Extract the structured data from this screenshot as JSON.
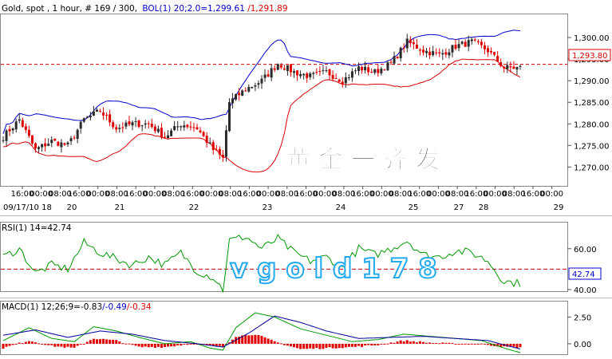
{
  "header": {
    "symbol_text": "Gold, spot , 1 hour, # 169 / 300,",
    "bol_text": "BOL(1) 20;2.0=1,299.61",
    "bol_text2": "/1,291.89"
  },
  "colors": {
    "up_candle": "#2a2a2a",
    "down_candle": "#e00000",
    "upper_band": "#0000cc",
    "lower_band": "#dd0000",
    "rsi_line": "#009900",
    "macd_line": "#009900",
    "signal_line": "#000099",
    "histogram": "#e00000",
    "dashed_line": "#cc0000",
    "watermark_cn": "#111111",
    "watermark_en": "#22aaee"
  },
  "watermarks": {
    "cn": "黄 金 一 齐 发",
    "en": "v g o l d 1 7 8"
  },
  "chart_data": [
    {
      "type": "candlestick",
      "title": "Gold, spot , 1 hour, # 169 / 300,",
      "bands": "BOL(1) 20;2.0=1,299.61/1,291.89",
      "ylim": [
        1266,
        1305
      ],
      "y_ticks": [
        "1,270.00",
        "1,275.00",
        "1,280.00",
        "1,285.00",
        "1,290.00",
        "1,295.00",
        "1,300.00"
      ],
      "y_tick_values": [
        1270,
        1275,
        1280,
        1285,
        1290,
        1295,
        1300
      ],
      "last_price": "1,293.80",
      "last_price_value": 1293.8,
      "x_time_labels": [
        "16:00",
        "00:00",
        "08:00",
        "16:00",
        "00:00",
        "08:00",
        "16:00",
        "00:00",
        "08:00",
        "16:00",
        "00:00",
        "08:00",
        "16:00",
        "00:00",
        "08:00",
        "16:00",
        "00:00",
        "08:00",
        "16:00",
        "00:00",
        "08:00",
        "16:00",
        "00:00",
        "08:00",
        "16:00",
        "00:00",
        "08:00",
        "16:00",
        "00:00",
        "08:00",
        "16:00",
        "00:00"
      ],
      "x_date_labels": [
        "09/17/10 18",
        "20",
        "21",
        "22",
        "23",
        "24",
        "25",
        "27",
        "28",
        "29"
      ],
      "series_keypoints": [
        [
          0,
          1277
        ],
        [
          5,
          1281
        ],
        [
          10,
          1274
        ],
        [
          15,
          1276
        ],
        [
          20,
          1275
        ],
        [
          25,
          1281
        ],
        [
          30,
          1283
        ],
        [
          35,
          1279
        ],
        [
          40,
          1280
        ],
        [
          45,
          1280
        ],
        [
          50,
          1277
        ],
        [
          55,
          1280
        ],
        [
          60,
          1279
        ],
        [
          65,
          1274
        ],
        [
          68,
          1272
        ],
        [
          70,
          1285
        ],
        [
          75,
          1288
        ],
        [
          80,
          1290
        ],
        [
          85,
          1294
        ],
        [
          90,
          1292
        ],
        [
          95,
          1291
        ],
        [
          100,
          1292
        ],
        [
          105,
          1290
        ],
        [
          110,
          1293
        ],
        [
          115,
          1292
        ],
        [
          120,
          1294
        ],
        [
          125,
          1299
        ],
        [
          130,
          1297
        ],
        [
          135,
          1296
        ],
        [
          140,
          1298
        ],
        [
          145,
          1299
        ],
        [
          150,
          1297
        ],
        [
          155,
          1293
        ],
        [
          160,
          1293
        ]
      ]
    },
    {
      "type": "line",
      "title": "RSI(1) 14=42.74",
      "ylim": [
        40,
        72
      ],
      "y_ticks": [
        "60.00",
        "40.00"
      ],
      "y_tick_values": [
        60,
        40
      ],
      "reference_level": 50,
      "last_value": "42.74",
      "last_value_num": 42.74,
      "series_keypoints": [
        [
          0,
          56
        ],
        [
          5,
          60
        ],
        [
          10,
          48
        ],
        [
          15,
          52
        ],
        [
          20,
          50
        ],
        [
          25,
          63
        ],
        [
          30,
          58
        ],
        [
          35,
          55
        ],
        [
          40,
          52
        ],
        [
          45,
          56
        ],
        [
          50,
          52
        ],
        [
          55,
          58
        ],
        [
          60,
          49
        ],
        [
          65,
          46
        ],
        [
          68,
          40
        ],
        [
          70,
          64
        ],
        [
          75,
          66
        ],
        [
          80,
          60
        ],
        [
          85,
          65
        ],
        [
          90,
          58
        ],
        [
          95,
          54
        ],
        [
          100,
          56
        ],
        [
          105,
          51
        ],
        [
          110,
          60
        ],
        [
          115,
          57
        ],
        [
          120,
          60
        ],
        [
          125,
          64
        ],
        [
          130,
          57
        ],
        [
          135,
          56
        ],
        [
          140,
          59
        ],
        [
          145,
          58
        ],
        [
          150,
          54
        ],
        [
          155,
          44
        ],
        [
          160,
          43
        ]
      ]
    },
    {
      "type": "line",
      "title": "MACD(1) 12;26;9=-0.83/-0.49/-0.34",
      "ylim": [
        -0.9,
        3.8
      ],
      "y_ticks": [
        "2.50",
        "0.00"
      ],
      "y_tick_values": [
        2.5,
        0
      ],
      "macd_keypoints": [
        [
          0,
          0.3
        ],
        [
          8,
          1.5
        ],
        [
          15,
          0.5
        ],
        [
          22,
          0.2
        ],
        [
          28,
          1.6
        ],
        [
          35,
          1.2
        ],
        [
          42,
          0.6
        ],
        [
          50,
          0.0
        ],
        [
          58,
          0.2
        ],
        [
          64,
          -0.4
        ],
        [
          68,
          -0.6
        ],
        [
          72,
          1.5
        ],
        [
          78,
          2.9
        ],
        [
          84,
          2.5
        ],
        [
          92,
          1.4
        ],
        [
          100,
          0.8
        ],
        [
          108,
          0.2
        ],
        [
          116,
          0.4
        ],
        [
          124,
          0.9
        ],
        [
          132,
          0.7
        ],
        [
          140,
          0.5
        ],
        [
          148,
          0.3
        ],
        [
          155,
          -0.4
        ],
        [
          160,
          -0.83
        ]
      ],
      "signal_keypoints": [
        [
          0,
          0.8
        ],
        [
          10,
          1.3
        ],
        [
          20,
          0.6
        ],
        [
          30,
          1.2
        ],
        [
          40,
          0.9
        ],
        [
          50,
          0.3
        ],
        [
          60,
          0.0
        ],
        [
          68,
          -0.3
        ],
        [
          76,
          1.0
        ],
        [
          84,
          2.6
        ],
        [
          92,
          2.0
        ],
        [
          100,
          1.2
        ],
        [
          110,
          0.5
        ],
        [
          120,
          0.6
        ],
        [
          130,
          0.7
        ],
        [
          140,
          0.5
        ],
        [
          150,
          0.3
        ],
        [
          160,
          -0.49
        ]
      ],
      "hist_keypoints": [
        [
          0,
          -0.4
        ],
        [
          8,
          0.3
        ],
        [
          15,
          -0.2
        ],
        [
          22,
          -0.4
        ],
        [
          28,
          0.5
        ],
        [
          35,
          0.3
        ],
        [
          42,
          -0.3
        ],
        [
          50,
          -0.3
        ],
        [
          58,
          0.0
        ],
        [
          64,
          -0.2
        ],
        [
          68,
          -0.3
        ],
        [
          72,
          0.7
        ],
        [
          78,
          0.9
        ],
        [
          84,
          0.2
        ],
        [
          92,
          -0.5
        ],
        [
          100,
          -0.4
        ],
        [
          108,
          -0.3
        ],
        [
          116,
          -0.1
        ],
        [
          124,
          0.3
        ],
        [
          132,
          0.1
        ],
        [
          140,
          0.0
        ],
        [
          148,
          0.0
        ],
        [
          155,
          -0.3
        ],
        [
          160,
          -0.34
        ]
      ]
    }
  ]
}
